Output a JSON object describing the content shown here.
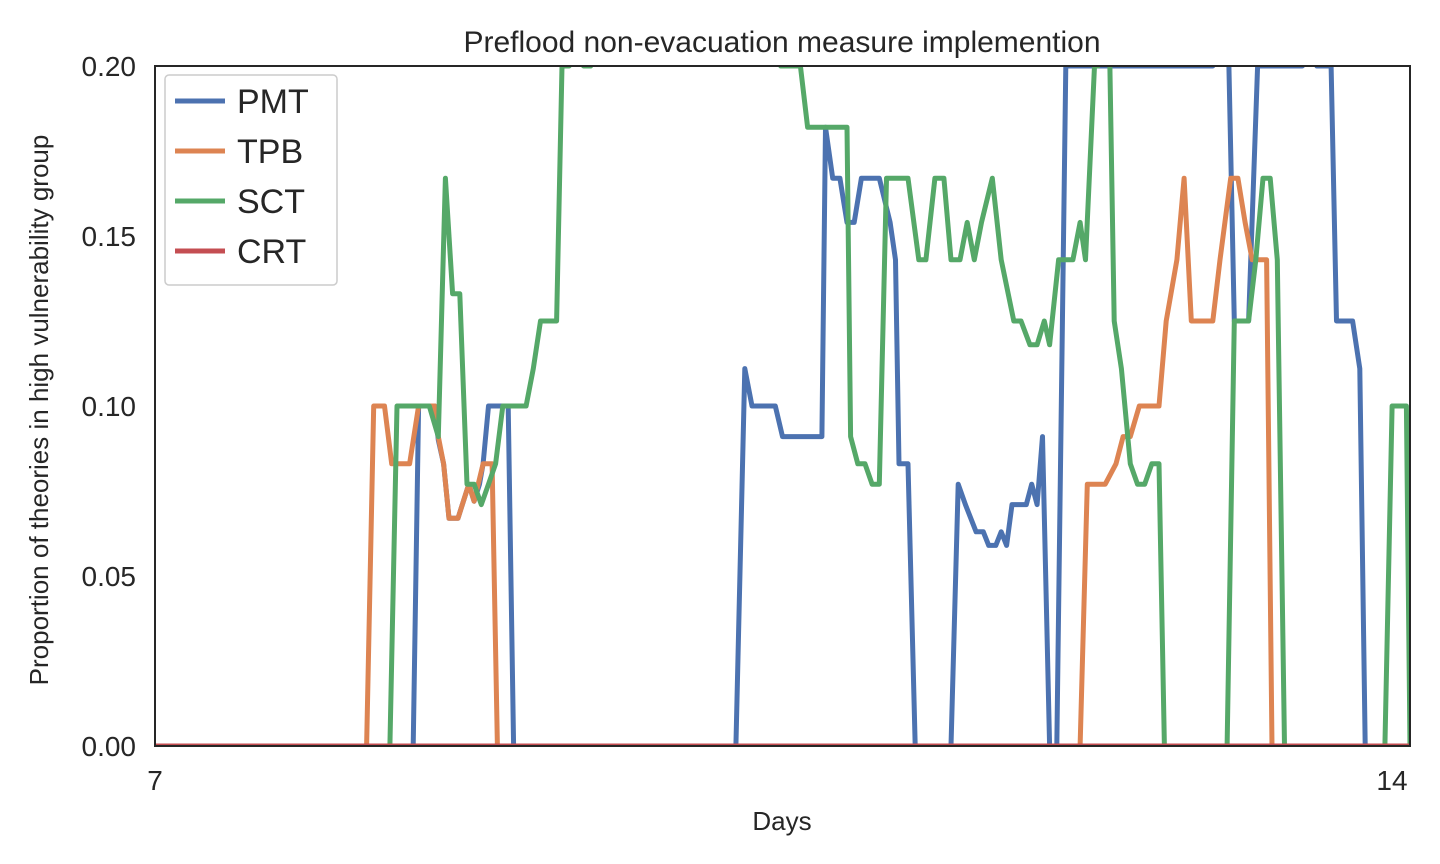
{
  "chart_data": {
    "type": "line",
    "title": "Preflood non-evacuation measure implemention",
    "xlabel": "Days",
    "ylabel": "Proportion of theories in high vulnerability group",
    "xlim": [
      7,
      14
    ],
    "ylim": [
      0,
      0.2
    ],
    "xticks": [
      "7",
      "14"
    ],
    "yticks": [
      "0.00",
      "0.05",
      "0.10",
      "0.15",
      "0.20"
    ],
    "grid": false,
    "legend_position": "top-left",
    "series": [
      {
        "name": "PMT",
        "color": "#4c72b0",
        "points": [
          [
            7.0,
            0
          ],
          [
            8.44,
            0
          ],
          [
            8.47,
            0.1
          ],
          [
            8.53,
            0.1
          ],
          [
            8.56,
            0.1
          ],
          [
            8.58,
            0.09
          ],
          [
            8.61,
            0.083
          ],
          [
            8.64,
            0.067
          ],
          [
            8.69,
            0.067
          ],
          [
            8.72,
            0.072
          ],
          [
            8.75,
            0.077
          ],
          [
            8.78,
            0.072
          ],
          [
            8.81,
            0.077
          ],
          [
            8.83,
            0.083
          ],
          [
            8.86,
            0.1
          ],
          [
            8.97,
            0.1
          ],
          [
            9.0,
            0
          ],
          [
            10.24,
            0
          ],
          [
            10.29,
            0.111
          ],
          [
            10.33,
            0.1
          ],
          [
            10.46,
            0.1
          ],
          [
            10.5,
            0.091
          ],
          [
            10.72,
            0.091
          ],
          [
            10.74,
            0.182
          ],
          [
            10.78,
            0.167
          ],
          [
            10.82,
            0.167
          ],
          [
            10.86,
            0.154
          ],
          [
            10.9,
            0.154
          ],
          [
            10.94,
            0.167
          ],
          [
            11.04,
            0.167
          ],
          [
            11.1,
            0.154
          ],
          [
            11.13,
            0.143
          ],
          [
            11.15,
            0.083
          ],
          [
            11.2,
            0.083
          ],
          [
            11.24,
            0
          ],
          [
            11.44,
            0
          ],
          [
            11.48,
            0.077
          ],
          [
            11.52,
            0.071
          ],
          [
            11.58,
            0.063
          ],
          [
            11.62,
            0.063
          ],
          [
            11.65,
            0.059
          ],
          [
            11.69,
            0.059
          ],
          [
            11.72,
            0.063
          ],
          [
            11.75,
            0.059
          ],
          [
            11.78,
            0.071
          ],
          [
            11.83,
            0.071
          ],
          [
            11.86,
            0.071
          ],
          [
            11.89,
            0.077
          ],
          [
            11.92,
            0.071
          ],
          [
            11.95,
            0.091
          ],
          [
            11.99,
            0
          ],
          [
            12.03,
            0
          ],
          [
            12.08,
            0.2
          ],
          [
            12.9,
            0.2
          ],
          [
            12.94,
            0.25
          ],
          [
            12.99,
            0.2
          ],
          [
            13.02,
            0.125
          ],
          [
            13.1,
            0.125
          ],
          [
            13.15,
            0.2
          ],
          [
            13.4,
            0.2
          ],
          [
            13.42,
            0.25
          ],
          [
            13.48,
            0.2
          ],
          [
            13.56,
            0.2
          ],
          [
            13.59,
            0.125
          ],
          [
            13.68,
            0.125
          ],
          [
            13.72,
            0.111
          ],
          [
            13.75,
            0
          ],
          [
            14.0,
            0
          ]
        ]
      },
      {
        "name": "TPB",
        "color": "#dd8452",
        "points": [
          [
            7.0,
            0
          ],
          [
            8.18,
            0
          ],
          [
            8.22,
            0.1
          ],
          [
            8.28,
            0.1
          ],
          [
            8.32,
            0.083
          ],
          [
            8.36,
            0.083
          ],
          [
            8.42,
            0.083
          ],
          [
            8.47,
            0.1
          ],
          [
            8.53,
            0.1
          ],
          [
            8.56,
            0.1
          ],
          [
            8.58,
            0.091
          ],
          [
            8.61,
            0.083
          ],
          [
            8.64,
            0.067
          ],
          [
            8.69,
            0.067
          ],
          [
            8.72,
            0.072
          ],
          [
            8.75,
            0.077
          ],
          [
            8.78,
            0.072
          ],
          [
            8.83,
            0.083
          ],
          [
            8.88,
            0.083
          ],
          [
            8.91,
            0
          ],
          [
            12.16,
            0
          ],
          [
            12.2,
            0.077
          ],
          [
            12.25,
            0.077
          ],
          [
            12.3,
            0.077
          ],
          [
            12.36,
            0.083
          ],
          [
            12.4,
            0.091
          ],
          [
            12.44,
            0.091
          ],
          [
            12.49,
            0.1
          ],
          [
            12.6,
            0.1
          ],
          [
            12.64,
            0.125
          ],
          [
            12.7,
            0.143
          ],
          [
            12.74,
            0.167
          ],
          [
            12.78,
            0.125
          ],
          [
            12.84,
            0.125
          ],
          [
            12.9,
            0.125
          ],
          [
            12.94,
            0.143
          ],
          [
            13.0,
            0.167
          ],
          [
            13.04,
            0.167
          ],
          [
            13.08,
            0.154
          ],
          [
            13.12,
            0.143
          ],
          [
            13.2,
            0.143
          ],
          [
            13.23,
            0
          ],
          [
            14.0,
            0
          ]
        ]
      },
      {
        "name": "SCT",
        "color": "#55a868",
        "points": [
          [
            7.0,
            0
          ],
          [
            8.31,
            0
          ],
          [
            8.35,
            0.1
          ],
          [
            8.53,
            0.1
          ],
          [
            8.58,
            0.091
          ],
          [
            8.62,
            0.167
          ],
          [
            8.66,
            0.133
          ],
          [
            8.7,
            0.133
          ],
          [
            8.74,
            0.077
          ],
          [
            8.78,
            0.077
          ],
          [
            8.82,
            0.071
          ],
          [
            8.86,
            0.077
          ],
          [
            8.9,
            0.083
          ],
          [
            8.94,
            0.1
          ],
          [
            9.07,
            0.1
          ],
          [
            9.11,
            0.111
          ],
          [
            9.15,
            0.125
          ],
          [
            9.24,
            0.125
          ],
          [
            9.27,
            0.2
          ],
          [
            9.31,
            0.2
          ],
          [
            9.35,
            0.25
          ],
          [
            9.39,
            0.2
          ],
          [
            9.43,
            0.2
          ],
          [
            9.48,
            0.25
          ],
          [
            10.44,
            0.25
          ],
          [
            10.49,
            0.2
          ],
          [
            10.6,
            0.2
          ],
          [
            10.64,
            0.182
          ],
          [
            10.79,
            0.182
          ],
          [
            10.86,
            0.182
          ],
          [
            10.88,
            0.091
          ],
          [
            10.92,
            0.083
          ],
          [
            10.96,
            0.083
          ],
          [
            11.0,
            0.077
          ],
          [
            11.04,
            0.077
          ],
          [
            11.08,
            0.167
          ],
          [
            11.2,
            0.167
          ],
          [
            11.26,
            0.143
          ],
          [
            11.3,
            0.143
          ],
          [
            11.35,
            0.167
          ],
          [
            11.4,
            0.167
          ],
          [
            11.44,
            0.143
          ],
          [
            11.49,
            0.143
          ],
          [
            11.53,
            0.154
          ],
          [
            11.57,
            0.143
          ],
          [
            11.61,
            0.154
          ],
          [
            11.67,
            0.167
          ],
          [
            11.72,
            0.143
          ],
          [
            11.79,
            0.125
          ],
          [
            11.83,
            0.125
          ],
          [
            11.88,
            0.118
          ],
          [
            11.92,
            0.118
          ],
          [
            11.96,
            0.125
          ],
          [
            11.99,
            0.118
          ],
          [
            12.04,
            0.143
          ],
          [
            12.12,
            0.143
          ],
          [
            12.16,
            0.154
          ],
          [
            12.19,
            0.143
          ],
          [
            12.24,
            0.2
          ],
          [
            12.26,
            0.2
          ],
          [
            12.31,
            0.25
          ],
          [
            12.35,
            0.125
          ],
          [
            12.39,
            0.111
          ],
          [
            12.44,
            0.083
          ],
          [
            12.48,
            0.077
          ],
          [
            12.52,
            0.077
          ],
          [
            12.56,
            0.083
          ],
          [
            12.6,
            0.083
          ],
          [
            12.63,
            0
          ],
          [
            12.98,
            0
          ],
          [
            13.02,
            0.125
          ],
          [
            13.1,
            0.125
          ],
          [
            13.14,
            0.143
          ],
          [
            13.18,
            0.167
          ],
          [
            13.22,
            0.167
          ],
          [
            13.26,
            0.143
          ],
          [
            13.3,
            0
          ],
          [
            13.86,
            0
          ],
          [
            13.9,
            0.1
          ],
          [
            13.98,
            0.1
          ],
          [
            14.0,
            0
          ]
        ]
      },
      {
        "name": "CRT",
        "color": "#c44e52",
        "points": [
          [
            7.0,
            0
          ],
          [
            14.0,
            0
          ]
        ]
      }
    ]
  }
}
